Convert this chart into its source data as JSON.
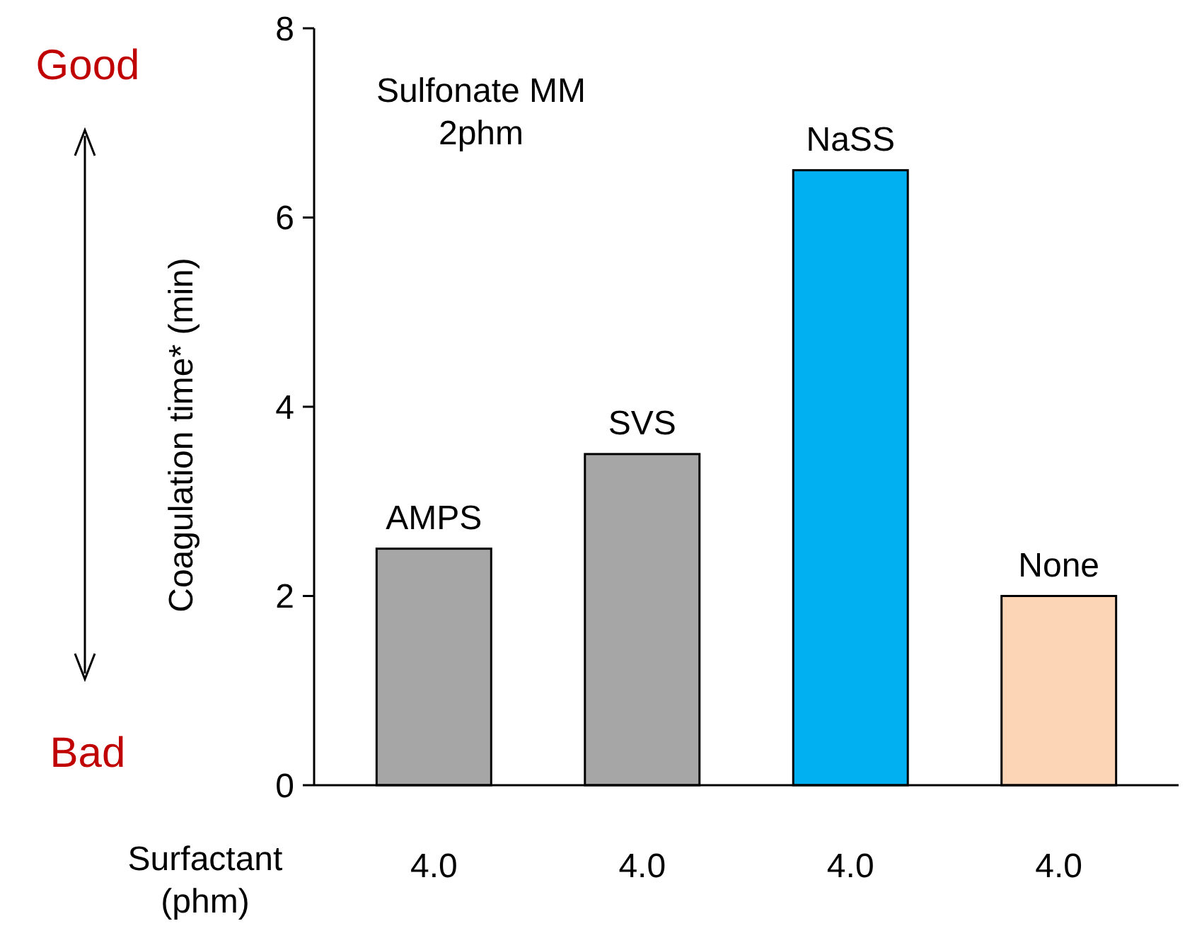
{
  "chart_data": {
    "type": "bar",
    "ylabel": "Coagulation time* (min)",
    "categories": [
      "AMPS",
      "SVS",
      "NaSS",
      "None"
    ],
    "values": [
      2.5,
      3.5,
      6.5,
      2.0
    ],
    "colors": [
      "#a6a6a6",
      "#a6a6a6",
      "#00b0f0",
      "#fbd5b5"
    ],
    "ylim": [
      0,
      8
    ],
    "yticks": [
      0,
      2,
      4,
      6,
      8
    ],
    "grid": false,
    "annotations": [
      "Sulfonate MM\n2phm",
      "Good",
      "Bad",
      "Surfactant\n(phm)",
      "4.0",
      "4.0",
      "4.0",
      "4.0"
    ]
  }
}
